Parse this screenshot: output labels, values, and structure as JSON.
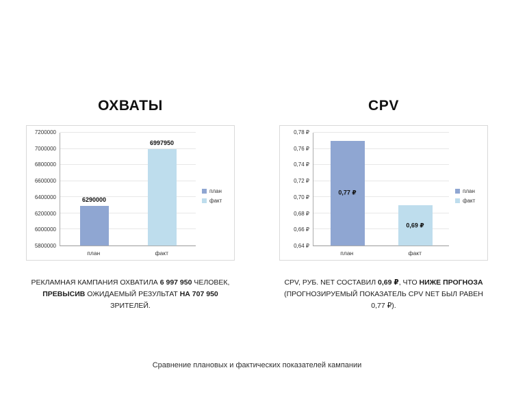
{
  "chart_data": [
    {
      "type": "bar",
      "title": "ОХВАТЫ",
      "categories": [
        "план",
        "факт"
      ],
      "values": [
        6290000,
        6997950
      ],
      "value_labels": [
        "6290000",
        "6997950"
      ],
      "value_label_position": "above",
      "bar_colors": [
        "#8fa6d2",
        "#bedded"
      ],
      "ylim": [
        5800000,
        7200000
      ],
      "yticks": [
        5800000,
        6000000,
        6200000,
        6400000,
        6600000,
        6800000,
        7000000,
        7200000
      ],
      "ytick_labels": [
        "5800000",
        "6000000",
        "6200000",
        "6400000",
        "6600000",
        "6800000",
        "7000000",
        "7200000"
      ],
      "legend": [
        "план",
        "факт"
      ],
      "legend_position": "right",
      "grid": true,
      "xlabel": "",
      "ylabel": ""
    },
    {
      "type": "bar",
      "title": "CPV",
      "categories": [
        "план",
        "факт"
      ],
      "values": [
        0.77,
        0.69
      ],
      "value_labels": [
        "0,77 ₽",
        "0,69 ₽"
      ],
      "value_label_position": "inside",
      "bar_colors": [
        "#8fa6d2",
        "#bedded"
      ],
      "ylim": [
        0.64,
        0.78
      ],
      "yticks": [
        0.64,
        0.66,
        0.68,
        0.7,
        0.72,
        0.74,
        0.76,
        0.78
      ],
      "ytick_labels": [
        "0,64 ₽",
        "0,66 ₽",
        "0,68 ₽",
        "0,70 ₽",
        "0,72 ₽",
        "0,74 ₽",
        "0,76 ₽",
        "0,78 ₽"
      ],
      "legend": [
        "план",
        "факт"
      ],
      "legend_position": "right",
      "grid": true,
      "xlabel": "",
      "ylabel": ""
    }
  ],
  "captions": {
    "left": [
      [
        {
          "t": "РЕКЛАМНАЯ КАМПАНИЯ ОХВАТИЛА ",
          "b": false
        },
        {
          "t": "6 997 950",
          "b": true
        },
        {
          "t": " ЧЕЛОВЕК,",
          "b": false
        }
      ],
      [
        {
          "t": "ПРЕВЫСИВ",
          "b": true
        },
        {
          "t": " ОЖИДАЕМЫЙ РЕЗУЛЬТАТ ",
          "b": false
        },
        {
          "t": "НА 707 950",
          "b": true
        },
        {
          "t": " ЗРИТЕЛЕЙ.",
          "b": false
        }
      ]
    ],
    "right": [
      [
        {
          "t": "CPV, РУБ. NET СОСТАВИЛ ",
          "b": false
        },
        {
          "t": "0,69 ₽",
          "b": true
        },
        {
          "t": ", ЧТО ",
          "b": false
        },
        {
          "t": "НИЖЕ ПРОГНОЗА",
          "b": true
        }
      ],
      [
        {
          "t": "(ПРОГНОЗИРУЕМЫЙ ПОКАЗАТЕЛЬ CPV NET БЫЛ РАВЕН 0,77 ₽).",
          "b": false
        }
      ]
    ]
  },
  "footer": {
    "caption": "Сравнение плановых и фактических показателей кампании"
  }
}
